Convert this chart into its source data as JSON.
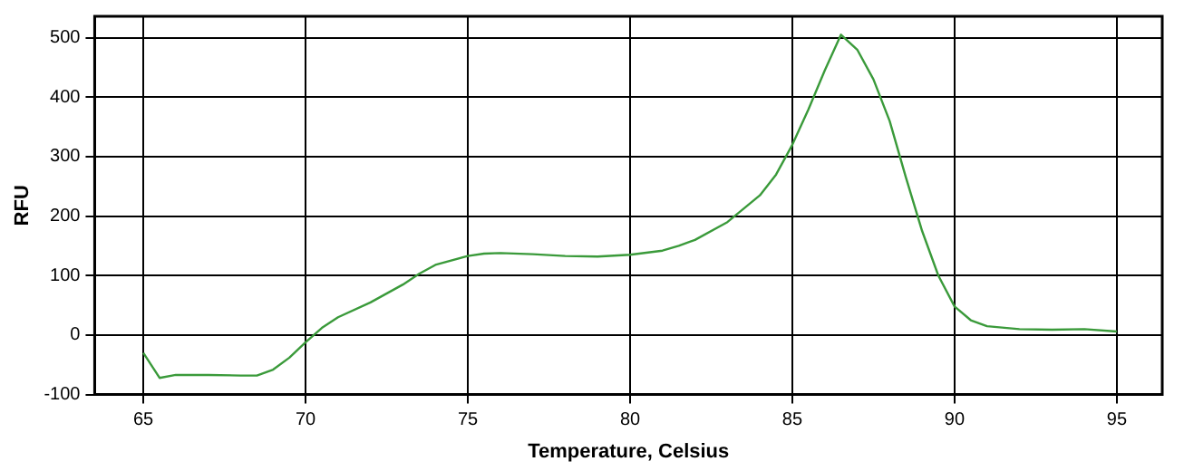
{
  "chart_data": {
    "type": "line",
    "xlabel": "Temperature, Celsius",
    "ylabel": "RFU",
    "x": [
      65,
      65.5,
      66,
      67,
      68,
      68.5,
      69,
      69.5,
      70,
      70.5,
      71,
      72,
      73,
      73.5,
      74,
      75,
      75.5,
      76,
      77,
      78,
      79,
      80,
      81,
      81.5,
      82,
      83,
      84,
      84.5,
      85,
      85.5,
      86,
      86.5,
      87,
      87.5,
      88,
      88.5,
      89,
      89.5,
      90,
      90.5,
      91,
      92,
      93,
      94,
      95
    ],
    "series": [
      {
        "color": "#3a9a3a",
        "values": [
          -30,
          -72,
          -67,
          -67,
          -68,
          -68,
          -58,
          -38,
          -12,
          12,
          30,
          55,
          85,
          103,
          118,
          133,
          137,
          138,
          136,
          133,
          132,
          135,
          142,
          150,
          160,
          190,
          235,
          270,
          320,
          380,
          445,
          505,
          480,
          430,
          360,
          265,
          175,
          100,
          48,
          25,
          15,
          10,
          9,
          10,
          6
        ]
      }
    ],
    "xlim": [
      63.5,
      96.4
    ],
    "xticks": [
      65,
      70,
      75,
      80,
      85,
      90,
      95
    ],
    "ylim": [
      -100,
      536
    ],
    "yticks": [
      -100,
      0,
      100,
      200,
      300,
      400,
      500
    ],
    "grid": true,
    "legend": false,
    "marker": "none",
    "line_style": "solid"
  }
}
